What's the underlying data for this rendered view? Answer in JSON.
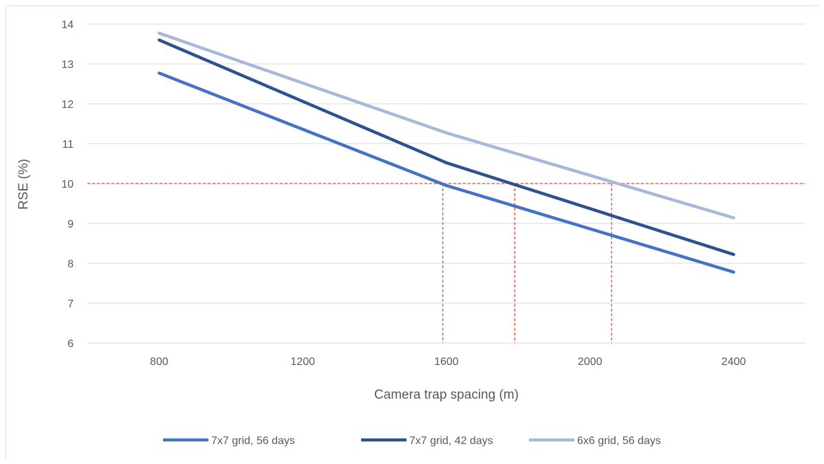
{
  "chart_data": {
    "type": "line",
    "title": "",
    "xlabel": "Camera trap spacing (m)",
    "ylabel": "RSE (%)",
    "xlim": [
      600,
      2600
    ],
    "ylim": [
      6,
      14
    ],
    "xticks": [
      800,
      1200,
      1600,
      2000,
      2400
    ],
    "yticks": [
      6,
      7,
      8,
      9,
      10,
      11,
      12,
      13,
      14
    ],
    "grid": "horizontal",
    "legend_position": "bottom",
    "x": [
      800,
      1600,
      2400
    ],
    "series": [
      {
        "name": "7x7 grid, 56 days",
        "color": "#4472c4",
        "values": [
          12.77,
          9.95,
          7.78
        ]
      },
      {
        "name": "7x7 grid, 42 days",
        "color": "#2f528f",
        "values": [
          13.6,
          10.52,
          8.22
        ]
      },
      {
        "name": "6x6 grid, 56 days",
        "color": "#a9b7db",
        "values": [
          13.77,
          11.27,
          9.14
        ]
      }
    ],
    "reference_lines": {
      "color": "#ff0000",
      "horizontal_y": 10,
      "vertical_x": [
        1590,
        1790,
        2060
      ]
    }
  }
}
